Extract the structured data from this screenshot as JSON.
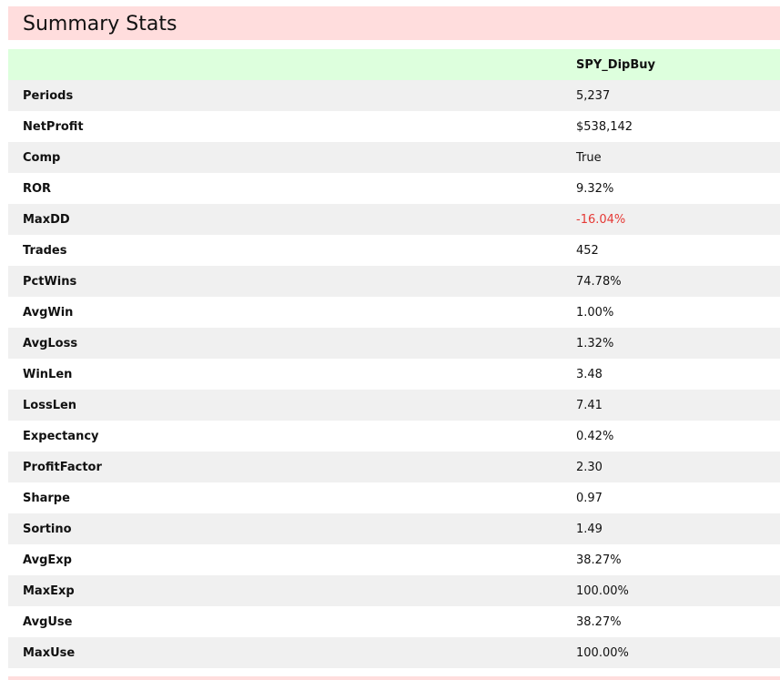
{
  "title": "Summary Stats",
  "table": {
    "columns": [
      "",
      "SPY_DipBuy"
    ],
    "rows": [
      {
        "label": "Periods",
        "value": "5,237"
      },
      {
        "label": "NetProfit",
        "value": "$538,142"
      },
      {
        "label": "Comp",
        "value": "True"
      },
      {
        "label": "ROR",
        "value": "9.32%"
      },
      {
        "label": "MaxDD",
        "value": "-16.04%",
        "color": "#e53935"
      },
      {
        "label": "Trades",
        "value": "452"
      },
      {
        "label": "PctWins",
        "value": "74.78%"
      },
      {
        "label": "AvgWin",
        "value": "1.00%"
      },
      {
        "label": "AvgLoss",
        "value": "1.32%"
      },
      {
        "label": "WinLen",
        "value": "3.48"
      },
      {
        "label": "LossLen",
        "value": "7.41"
      },
      {
        "label": "Expectancy",
        "value": "0.42%"
      },
      {
        "label": "ProfitFactor",
        "value": "2.30"
      },
      {
        "label": "Sharpe",
        "value": "0.97"
      },
      {
        "label": "Sortino",
        "value": "1.49"
      },
      {
        "label": "AvgExp",
        "value": "38.27%"
      },
      {
        "label": "MaxExp",
        "value": "100.00%"
      },
      {
        "label": "AvgUse",
        "value": "38.27%"
      },
      {
        "label": "MaxUse",
        "value": "100.00%"
      }
    ]
  },
  "colors": {
    "title_background": "#ffdddd",
    "header_background": "#ddffdd",
    "stripe_background": "#f0f0f0",
    "negative": "#e53935"
  }
}
